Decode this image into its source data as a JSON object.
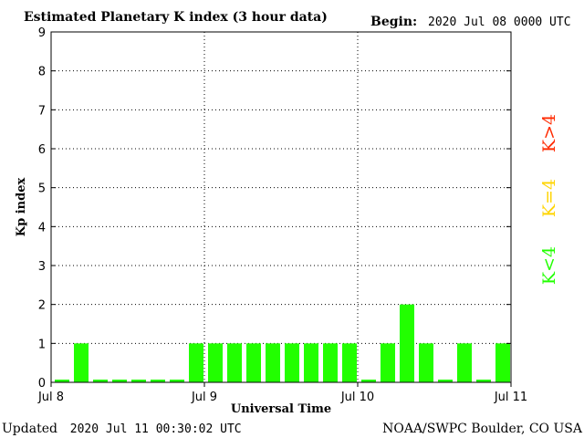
{
  "header": {
    "title": "Estimated Planetary K index (3 hour data)",
    "begin_label": "Begin:",
    "begin_value": "2020 Jul 08 0000 UTC"
  },
  "footer": {
    "updated_label": "Updated",
    "updated_value": "2020 Jul 11 00:30:02 UTC",
    "source": "NOAA/SWPC Boulder, CO USA"
  },
  "legend": [
    {
      "text": "K>4",
      "color": "#ff2a00"
    },
    {
      "text": "K=4",
      "color": "#ffd400"
    },
    {
      "text": "K<4",
      "color": "#22ff00"
    }
  ],
  "chart_data": {
    "type": "bar",
    "title": "Estimated Planetary K index (3 hour data)",
    "xlabel": "Universal Time",
    "ylabel": "Kp index",
    "ylim": [
      0,
      9
    ],
    "yticks": [
      0,
      1,
      2,
      3,
      4,
      5,
      6,
      7,
      8,
      9
    ],
    "xticks": [
      "Jul 8",
      "Jul 9",
      "Jul 10",
      "Jul 11"
    ],
    "grid": "dotted, at day boundaries and each integer Kp",
    "bar_color": "#22ff00",
    "interval_hours": 3,
    "start": "2020 Jul 08 0000 UTC",
    "values": [
      0,
      1,
      0,
      0,
      0,
      0,
      0,
      1,
      1,
      1,
      1,
      1,
      1,
      1,
      1,
      1,
      0,
      1,
      2,
      1,
      0,
      1,
      0,
      1
    ]
  }
}
